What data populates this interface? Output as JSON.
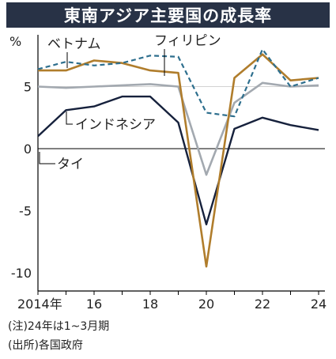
{
  "title": "東南アジア主要国の成長率",
  "notes": {
    "note1": "(注)24年は1~3月期",
    "note2": "(出所)各国政府"
  },
  "colors": {
    "title_bg": "#283246",
    "vietnam": "#2e6f8e",
    "philippines": "#b07d2c",
    "indonesia": "#a3a9b0",
    "thailand": "#16213c",
    "axis": "#000000",
    "grid": "#d2d2d2"
  },
  "chart_data": {
    "type": "line",
    "title": "東南アジア主要国の成長率",
    "unit_label": "%",
    "x": [
      2014,
      2015,
      2016,
      2017,
      2018,
      2019,
      2020,
      2021,
      2022,
      2023,
      2024
    ],
    "x_ticks": [
      2014,
      2016,
      2018,
      2020,
      2022,
      2024
    ],
    "x_tick_labels": [
      "2014年",
      "16",
      "18",
      "20",
      "22",
      "24"
    ],
    "y_ticks": [
      5,
      0,
      -5,
      -10
    ],
    "y_tick_labels": [
      "5",
      "0",
      "-5",
      "-10"
    ],
    "xlim": [
      2014,
      2024
    ],
    "ylim": [
      -10.5,
      8.5
    ],
    "grid": false,
    "series": [
      {
        "name": "ベトナム",
        "style": "dashed",
        "values": [
          6.4,
          7.0,
          6.7,
          6.9,
          7.5,
          7.4,
          2.9,
          2.6,
          8.0,
          5.0,
          5.7
        ]
      },
      {
        "name": "フィリピン",
        "style": "solid",
        "values": [
          6.3,
          6.3,
          7.1,
          6.9,
          6.3,
          6.1,
          -9.5,
          5.7,
          7.6,
          5.5,
          5.7
        ]
      },
      {
        "name": "インドネシア",
        "style": "solid",
        "values": [
          5.0,
          4.9,
          5.0,
          5.1,
          5.2,
          5.0,
          -2.1,
          3.7,
          5.3,
          5.0,
          5.1
        ]
      },
      {
        "name": "タイ",
        "style": "solid",
        "values": [
          1.0,
          3.1,
          3.4,
          4.2,
          4.2,
          2.1,
          -6.1,
          1.6,
          2.5,
          1.9,
          1.5
        ]
      }
    ],
    "series_labels": {
      "vietnam": "ベトナム",
      "philippines": "フィリピン",
      "indonesia": "インドネシア",
      "thailand": "タイ"
    }
  }
}
